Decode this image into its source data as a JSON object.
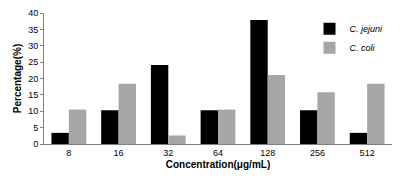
{
  "chart_data": {
    "type": "bar",
    "x_label": "Concentration(μg/mL)",
    "y_label": "Percentage(%)",
    "categories": [
      "8",
      "16",
      "32",
      "64",
      "128",
      "256",
      "512"
    ],
    "series": [
      {
        "name": "C. jejuni",
        "color": "#000000",
        "values": [
          3.4,
          10.3,
          24.1,
          10.3,
          37.9,
          10.3,
          3.4
        ]
      },
      {
        "name": "C. coli",
        "color": "#a6a6a6",
        "values": [
          10.5,
          18.4,
          2.6,
          10.5,
          21.1,
          15.8,
          18.4
        ]
      }
    ],
    "ylim": [
      0,
      40
    ],
    "yticks": [
      0,
      5,
      10,
      15,
      20,
      25,
      30,
      35,
      40
    ],
    "grid": false,
    "legend": "top right"
  }
}
